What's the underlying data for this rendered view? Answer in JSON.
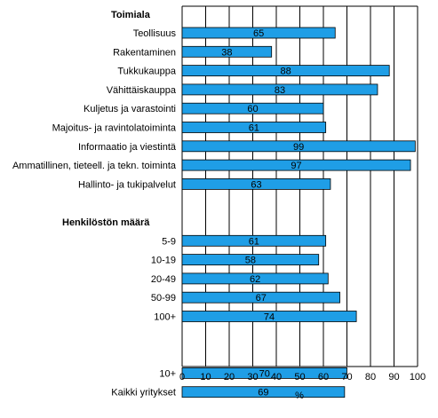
{
  "chart_data": {
    "type": "bar",
    "orientation": "horizontal",
    "xlabel": "%",
    "xlim": [
      0,
      100
    ],
    "xticks": [
      0,
      10,
      20,
      30,
      40,
      50,
      60,
      70,
      80,
      90,
      100
    ],
    "grid": "vertical",
    "bar_color": "#1f9ee6",
    "groups": [
      {
        "heading": "Toimiala",
        "categories": [
          "Teollisuus",
          "Rakentaminen",
          "Tukkukauppa",
          "Vähittäiskauppa",
          "Kuljetus ja varastointi",
          "Majoitus- ja ravintolatoiminta",
          "Informaatio ja viestintä",
          "Ammatillinen, tieteell. ja tekn. toiminta",
          "Hallinto- ja tukipalvelut"
        ],
        "values": [
          65,
          38,
          88,
          83,
          60,
          61,
          99,
          97,
          63
        ]
      },
      {
        "heading": "Henkilöstön määrä",
        "categories": [
          "5-9",
          "10-19",
          "20-49",
          "50-99",
          "100+"
        ],
        "values": [
          61,
          58,
          62,
          67,
          74
        ]
      },
      {
        "heading": "",
        "categories": [
          "10+",
          "Kaikki yritykset"
        ],
        "values": [
          70,
          69
        ]
      }
    ]
  }
}
